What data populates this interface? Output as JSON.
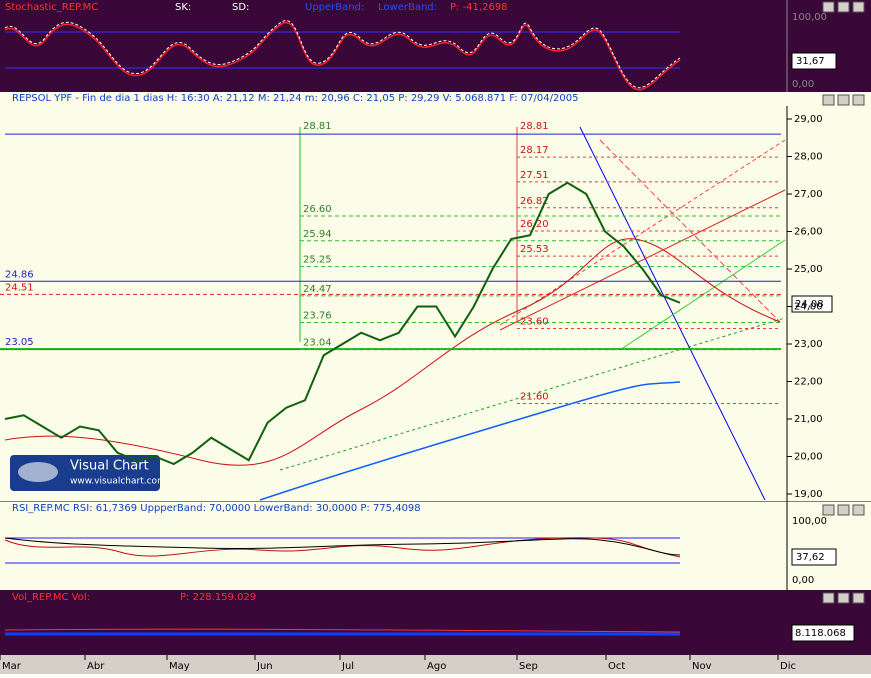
{
  "stochastic": {
    "header": [
      "Stochastic_REP.MC",
      "SK:",
      "SD:",
      "UpperBand:",
      "LowerBand:",
      "P: -41,2698"
    ],
    "axis": [
      "100,00",
      "0,00"
    ],
    "current": "31,67"
  },
  "main": {
    "header": "REPSOL YPF - Fin de dia 1 dias H: 16:30 A: 21,12 M: 21,24 m: 20,96 C: 21,05 P: 29,29 V: 5.068.871 F: 07/04/2005",
    "yticks": [
      "29,00",
      "28,00",
      "27,00",
      "26,00",
      "25,00",
      "24,00",
      "23,00",
      "22,00",
      "21,00",
      "20,00",
      "19,00"
    ],
    "current": "24,08",
    "levels_left": [
      "24.86",
      "24.51",
      "23.05"
    ],
    "levels_mid": [
      "28.81",
      "26.60",
      "25.94",
      "25.25",
      "24.47",
      "23.76",
      "23.04"
    ],
    "levels_right": [
      "28.81",
      "28.17",
      "27.51",
      "26.82",
      "26.20",
      "25.53",
      "23.60",
      "21.60"
    ],
    "close": [
      21.0,
      21.1,
      20.8,
      20.5,
      20.8,
      20.7,
      20.1,
      19.9,
      20.0,
      19.8,
      20.1,
      20.5,
      20.2,
      19.9,
      20.9,
      21.3,
      21.5,
      22.7,
      23.0,
      23.3,
      23.1,
      23.3,
      24.0,
      24.0,
      23.2,
      24.0,
      25.0,
      25.8,
      25.9,
      27.0,
      27.3,
      27.0,
      26.0,
      25.6,
      25.0,
      24.3,
      24.1
    ]
  },
  "rsi": {
    "header": "RSI_REP.MC  RSI: 61,7369  UppperBand: 70,0000  LowerBand: 30,0000  P: 775,4098",
    "axis": [
      "100,00",
      "0,00"
    ],
    "current": "37,62"
  },
  "volume": {
    "header": "Vol_REP.MC  Vol:",
    "p": "P: 228.159.029",
    "current": "8.118.068"
  },
  "months": [
    "Mar",
    "Abr",
    "May",
    "Jun",
    "Jul",
    "Ago",
    "Sep",
    "Oct",
    "Nov",
    "Dic"
  ],
  "logo": {
    "title": "Visual Chart",
    "url": "www.visualchart.com"
  }
}
